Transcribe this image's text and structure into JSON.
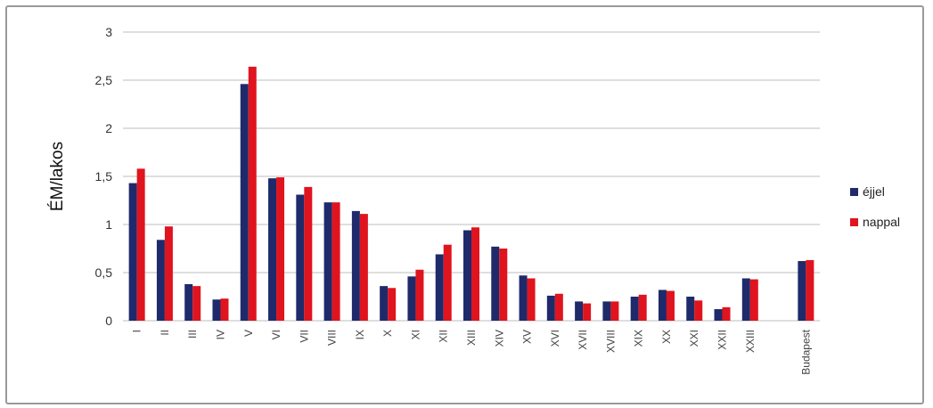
{
  "chart_data": {
    "type": "bar",
    "title": "",
    "xlabel": "",
    "ylabel": "ÉM/lakos",
    "ylim": [
      0,
      3
    ],
    "yticks": [
      "0",
      "0,5",
      "1",
      "1,5",
      "2",
      "2,5",
      "3"
    ],
    "grid": true,
    "legend_position": "right",
    "categories": [
      "I",
      "II",
      "III",
      "IV",
      "V",
      "VI",
      "VII",
      "VIII",
      "IX",
      "X",
      "XI",
      "XII",
      "XIII",
      "XIV",
      "XV",
      "XVI",
      "XVII",
      "XVIII",
      "XIX",
      "XX",
      "XXI",
      "XXII",
      "XXIII",
      "",
      "Budapest"
    ],
    "series": [
      {
        "name": "éjjel",
        "color": "#1f2a6b",
        "values": [
          1.43,
          0.84,
          0.38,
          0.22,
          2.46,
          1.48,
          1.31,
          1.23,
          1.14,
          0.36,
          0.46,
          0.69,
          0.94,
          0.77,
          0.47,
          0.26,
          0.2,
          0.2,
          0.25,
          0.32,
          0.25,
          0.12,
          0.44,
          null,
          0.62
        ]
      },
      {
        "name": "nappal",
        "color": "#e0141e",
        "values": [
          1.58,
          0.98,
          0.36,
          0.23,
          2.64,
          1.49,
          1.39,
          1.23,
          1.11,
          0.34,
          0.53,
          0.79,
          0.97,
          0.75,
          0.44,
          0.28,
          0.18,
          0.2,
          0.27,
          0.31,
          0.21,
          0.14,
          0.43,
          null,
          0.63
        ]
      }
    ]
  }
}
